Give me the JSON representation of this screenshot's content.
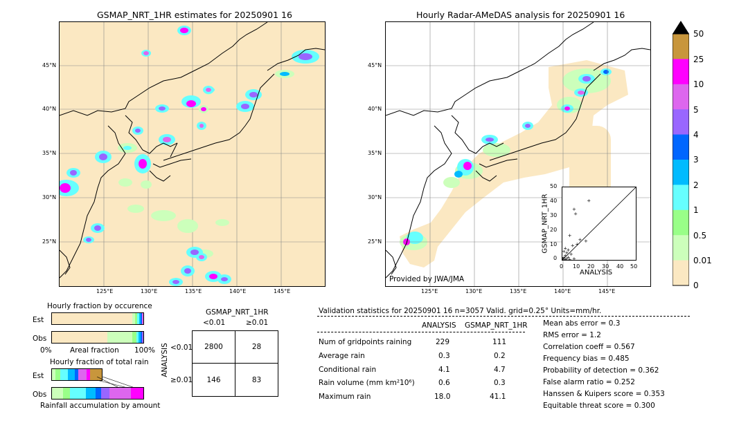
{
  "left_map": {
    "title": "GSMAP_NRT_1HR estimates for 20250901 16",
    "lat_labels": [
      "45°N",
      "40°N",
      "35°N",
      "30°N",
      "25°N"
    ],
    "lon_labels": [
      "125°E",
      "130°E",
      "135°E",
      "140°E",
      "145°E"
    ]
  },
  "right_map": {
    "title": "Hourly Radar-AMeDAS analysis for 20250901 16",
    "lat_labels": [
      "45°N",
      "40°N",
      "35°N",
      "30°N",
      "25°N"
    ],
    "lon_labels": [
      "125°E",
      "130°E",
      "135°E",
      "140°E",
      "145°E"
    ],
    "credit": "Provided by JWA/JMA"
  },
  "scatter": {
    "ylabel": "GSMAP_NRT_1HR",
    "xlabel": "ANALYSIS",
    "ticks": [
      "0",
      "10",
      "20",
      "30",
      "40",
      "50"
    ]
  },
  "colorbar": {
    "labels": [
      "50",
      "25",
      "10",
      "5",
      "4",
      "3",
      "2",
      "1",
      "0.5",
      "0.01",
      "0"
    ],
    "colors": [
      "#c8963c",
      "#ff00ff",
      "#dd66ee",
      "#9966ff",
      "#0066ff",
      "#00bbff",
      "#66ffff",
      "#99ff88",
      "#ccffbb",
      "#fbe8c2"
    ]
  },
  "occurrence": {
    "title": "Hourly fraction by occurence",
    "row_est": "Est",
    "row_obs": "Obs",
    "axis_left": "0%",
    "axis_mid": "Areal fraction",
    "axis_right": "100%"
  },
  "total_rain": {
    "title": "Hourly fraction of total rain",
    "row_est": "Est",
    "row_obs": "Obs",
    "axis": "Rainfall accumulation by amount"
  },
  "contingency": {
    "header": "GSMAP_NRT_1HR",
    "col1": "<0.01",
    "col2": "≥0.01",
    "row_label": "ANALYSIS",
    "row1": "<0.01",
    "row2": "≥0.01",
    "a": "2800",
    "b": "28",
    "c": "146",
    "d": "83"
  },
  "validation": {
    "header": "Validation statistics for 20250901 16  n=3057 Valid. grid=0.25° Units=mm/hr.",
    "col_analysis": "ANALYSIS",
    "col_gsmap": "GSMAP_NRT_1HR",
    "rows": [
      {
        "label": "Num of gridpoints raining",
        "analysis": "229",
        "gsmap": "111"
      },
      {
        "label": "Average rain",
        "analysis": "0.3",
        "gsmap": "0.2"
      },
      {
        "label": "Conditional rain",
        "analysis": "4.1",
        "gsmap": "4.7"
      },
      {
        "label": "Rain volume (mm km²10⁶)",
        "analysis": "0.6",
        "gsmap": "0.3"
      },
      {
        "label": "Maximum rain",
        "analysis": "18.0",
        "gsmap": "41.1"
      }
    ],
    "scores": [
      "Mean abs error =    0.3",
      "RMS error =    1.2",
      "Correlation coeff =  0.567",
      "Frequency bias =  0.485",
      "Probability of detection =  0.362",
      "False alarm ratio =  0.252",
      "Hanssen & Kuipers score =  0.353",
      "Equitable threat score =  0.300"
    ]
  },
  "chart_data": {
    "type": "scatter",
    "xlabel": "ANALYSIS",
    "ylabel": "GSMAP_NRT_1HR",
    "xlim": [
      0,
      50
    ],
    "ylim": [
      0,
      50
    ],
    "points": [
      [
        18,
        41
      ],
      [
        8,
        35
      ],
      [
        9,
        32
      ],
      [
        5,
        17
      ],
      [
        12,
        14
      ],
      [
        16,
        13
      ],
      [
        10,
        11
      ],
      [
        7,
        10
      ],
      [
        2,
        8
      ],
      [
        4,
        7
      ],
      [
        1,
        6
      ],
      [
        3,
        5
      ],
      [
        6,
        4
      ],
      [
        2,
        3
      ],
      [
        1,
        2
      ],
      [
        4,
        2
      ],
      [
        0.5,
        1
      ],
      [
        3,
        1
      ],
      [
        8,
        1
      ],
      [
        2,
        0.5
      ],
      [
        5,
        0.5
      ],
      [
        1,
        0
      ],
      [
        0,
        1
      ]
    ]
  }
}
